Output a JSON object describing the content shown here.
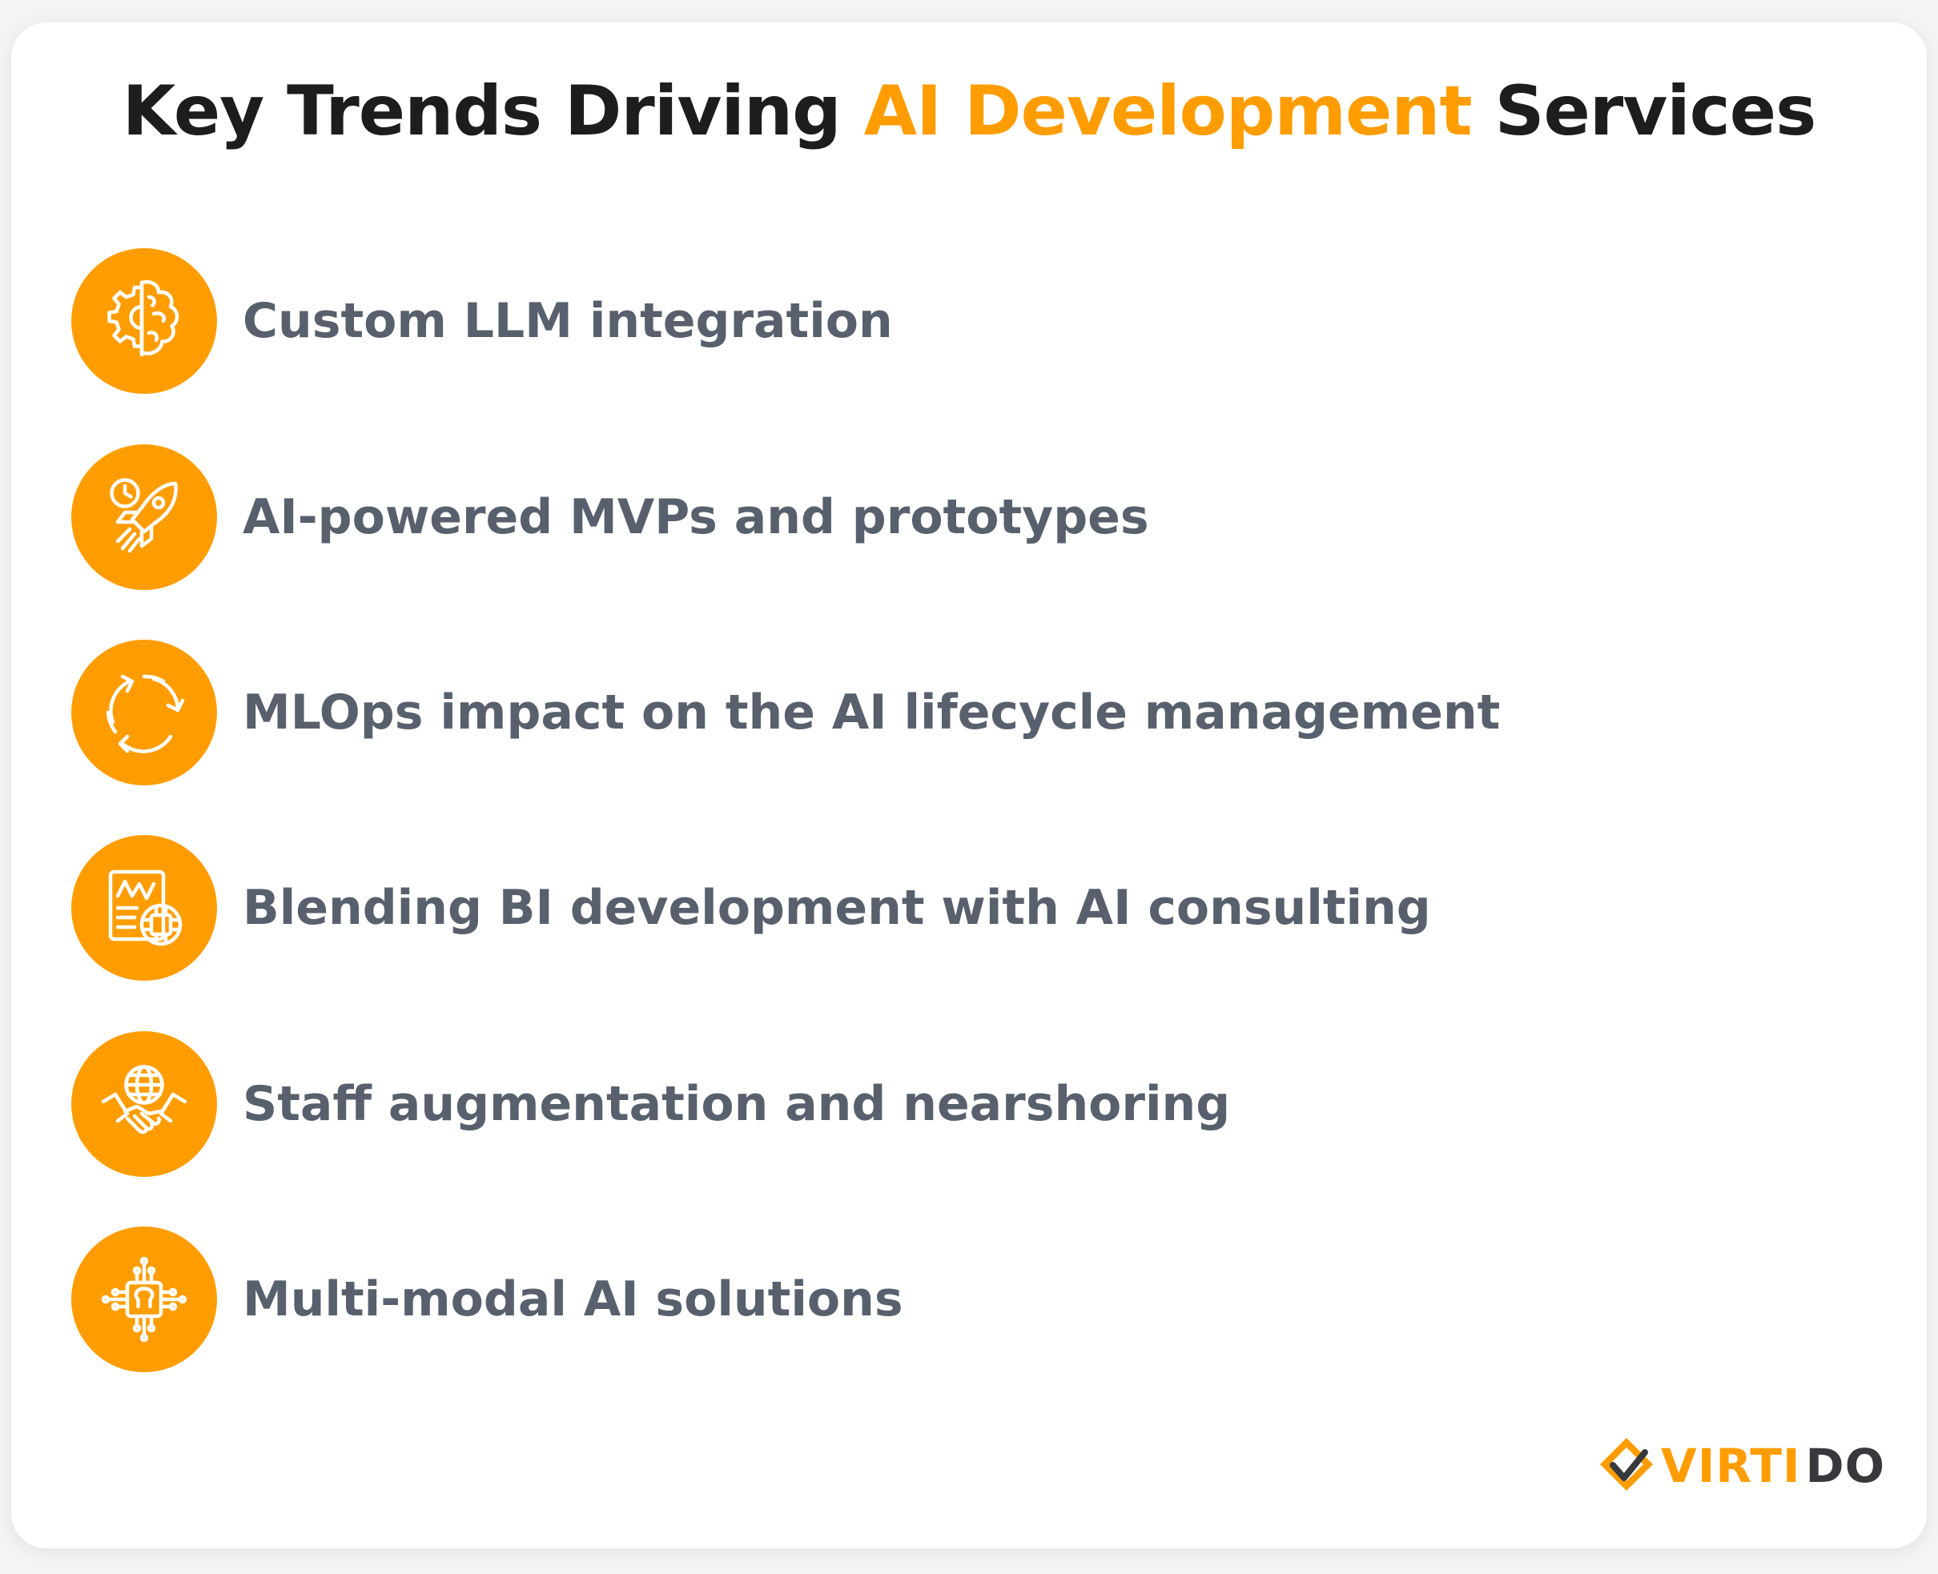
{
  "header": {
    "title_before": "Key Trends Driving",
    "title_highlight": "AI Development",
    "title_after": "Services"
  },
  "trends": [
    {
      "label": "Custom LLM integration",
      "icon": "brain-gear-icon"
    },
    {
      "label": "AI-powered MVPs and prototypes",
      "icon": "rocket-clock-icon"
    },
    {
      "label": "MLOps impact on the AI lifecycle management",
      "icon": "cycle-arrows-icon"
    },
    {
      "label": "Blending BI development with AI consulting",
      "icon": "chart-ai-chip-icon"
    },
    {
      "label": "Staff augmentation and nearshoring",
      "icon": "globe-handshake-icon"
    },
    {
      "label": "Multi-modal AI solutions",
      "icon": "ai-chip-circuit-icon"
    }
  ],
  "logo": {
    "part1": "VIRTI",
    "part2": "DO",
    "icon": "checkmark-diamond-icon"
  },
  "colors": {
    "accent": "#ff9d00",
    "title_text": "#1c1d1f",
    "item_text": "#58606d",
    "logo_dark": "#38393c"
  }
}
